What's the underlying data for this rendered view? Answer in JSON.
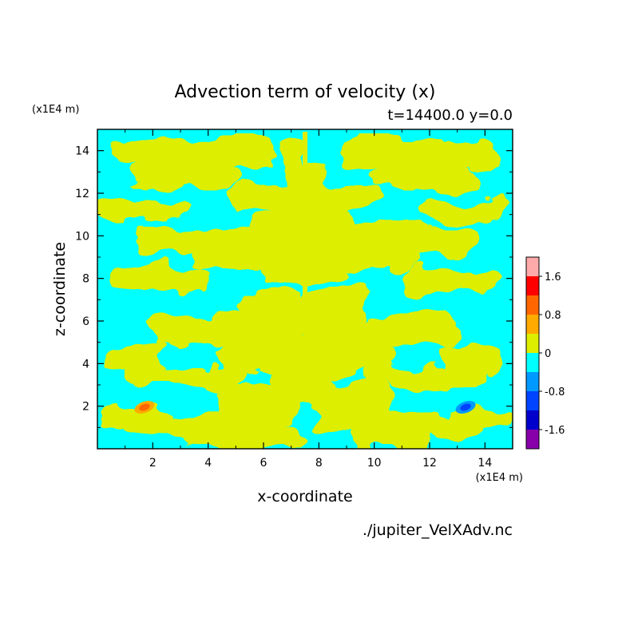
{
  "chart_data": {
    "type": "heatmap",
    "title": "Advection term of velocity (x)",
    "subtitle": "t=14400.0 y=0.0",
    "xlabel": "x-coordinate",
    "ylabel": "z-coordinate",
    "x_unit": "(x1E4 m)",
    "y_unit": "(x1E4 m)",
    "footer": "./jupiter_VelXAdv.nc",
    "xlim": [
      0,
      15
    ],
    "ylim": [
      0,
      15
    ],
    "x_ticks": [
      2,
      4,
      6,
      8,
      10,
      12,
      14
    ],
    "y_ticks": [
      2,
      4,
      6,
      8,
      10,
      12,
      14
    ],
    "colorbar": {
      "ticks": [
        "1.6",
        "0.8",
        "0",
        "-0.8",
        "-1.6"
      ],
      "levels": [
        {
          "color": "#ffaaaa"
        },
        {
          "color": "#ff0000"
        },
        {
          "color": "#ff6600"
        },
        {
          "color": "#ffaa00"
        },
        {
          "color": "#ddee00"
        },
        {
          "color": "#00ffff"
        },
        {
          "color": "#0099ff"
        },
        {
          "color": "#0044ff"
        },
        {
          "color": "#0000cc"
        },
        {
          "color": "#8800aa"
        }
      ]
    },
    "colors": {
      "positive": "#ddee00",
      "negative": "#00ffff"
    },
    "features": [
      {
        "x": 1.7,
        "z": 1.95,
        "level": "positive-peak",
        "color": "#ff6600"
      },
      {
        "x": 13.3,
        "z": 1.95,
        "level": "negative-peak",
        "color": "#0044ff"
      }
    ]
  }
}
